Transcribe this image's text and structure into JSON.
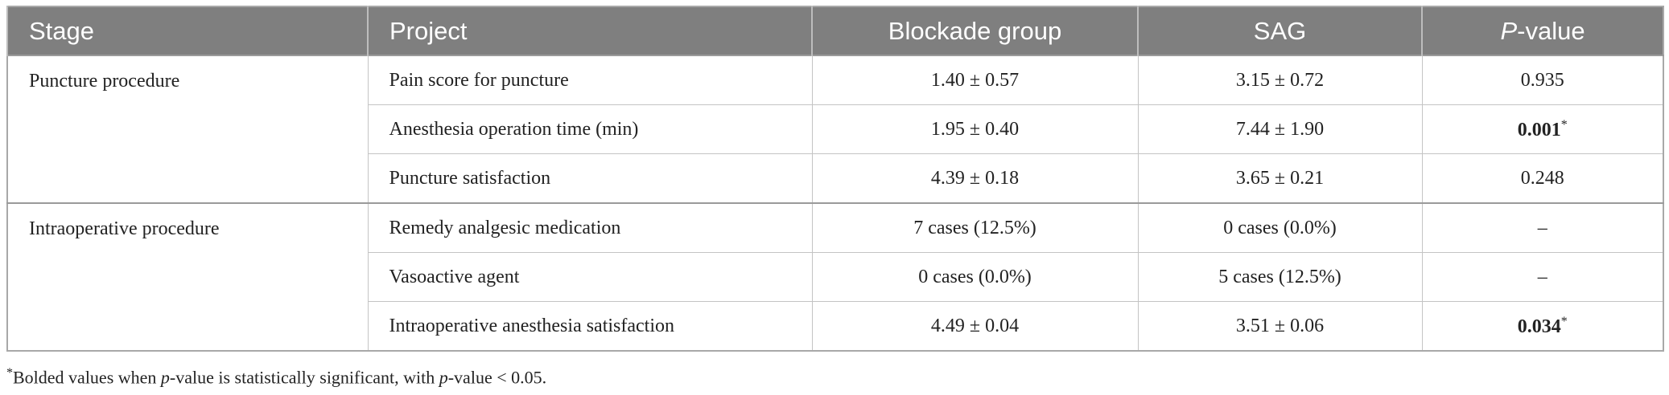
{
  "table": {
    "header": [
      [
        "Stage"
      ],
      [
        "Project"
      ],
      [
        "Blockade group"
      ],
      [
        "SAG"
      ],
      [
        "P",
        "-value"
      ]
    ],
    "groups": [
      {
        "stage": "Puncture procedure",
        "rows": [
          {
            "project": "Pain score for puncture",
            "blockade": "1.40 ± 0.57",
            "sag": "3.15 ± 0.72",
            "p": "0.935"
          },
          {
            "project": "Anesthesia operation time (min)",
            "blockade": "1.95 ± 0.40",
            "sag": "7.44 ± 1.90",
            "p": "0.001",
            "mark": "*"
          },
          {
            "project": "Puncture satisfaction",
            "blockade": "4.39 ± 0.18",
            "sag": "3.65 ± 0.21",
            "p": "0.248"
          }
        ]
      },
      {
        "stage": "Intraoperative procedure",
        "rows": [
          {
            "project": "Remedy analgesic medication",
            "blockade": "7 cases (12.5%)",
            "sag": "0 cases (0.0%)",
            "p": "–"
          },
          {
            "project": "Vasoactive agent",
            "blockade": "0 cases (0.0%)",
            "sag": "5 cases (12.5%)",
            "p": "–"
          },
          {
            "project": "Intraoperative anesthesia satisfaction",
            "blockade": "4.49 ± 0.04",
            "sag": "3.51 ± 0.06",
            "p": "0.034",
            "mark": "*"
          }
        ]
      }
    ]
  },
  "footnote": [
    "*",
    "Bolded values when ",
    "p",
    "-value is statistically significant, with ",
    "p",
    "-value < 0.05."
  ]
}
